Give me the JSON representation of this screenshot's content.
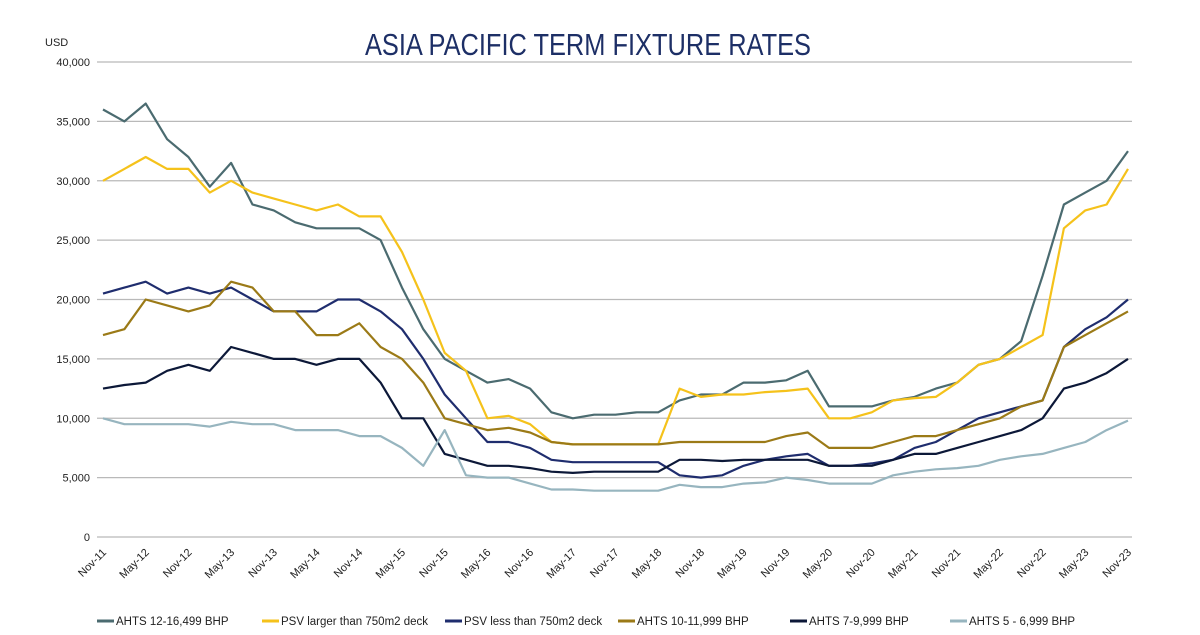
{
  "chart_data": {
    "type": "line",
    "title": "ASIA PACIFIC TERM FIXTURE RATES",
    "ylabel": "USD",
    "xlabel": "",
    "ylim": [
      0,
      40000
    ],
    "yticks": [
      0,
      5000,
      10000,
      15000,
      20000,
      25000,
      30000,
      35000,
      40000
    ],
    "ytick_labels": [
      "0",
      "5,000",
      "10,000",
      "15,000",
      "20,000",
      "25,000",
      "30,000",
      "35,000",
      "40,000"
    ],
    "grid": true,
    "legend_position": "bottom",
    "x_tick_labels": [
      "Nov-11",
      "May-12",
      "Nov-12",
      "May-13",
      "Nov-13",
      "May-14",
      "Nov-14",
      "May-15",
      "Nov-15",
      "May-16",
      "Nov-16",
      "May-17",
      "Nov-17",
      "May-18",
      "Nov-18",
      "May-19",
      "Nov-19",
      "May-20",
      "Nov-20",
      "May-21",
      "Nov-21",
      "May-22",
      "Nov-22",
      "May-23",
      "Nov-23"
    ],
    "x_resolution": "quarterly from Nov-11 to Nov-23",
    "series": [
      {
        "name": "AHTS 12-16,499 BHP",
        "color": "#4b6b70",
        "values": [
          36000,
          35000,
          36500,
          33500,
          32000,
          29500,
          31500,
          28000,
          27500,
          26500,
          26000,
          26000,
          26000,
          25000,
          21000,
          17500,
          15000,
          14000,
          13000,
          13300,
          12500,
          10500,
          10000,
          10300,
          10300,
          10500,
          10500,
          11500,
          12000,
          12000,
          13000,
          13000,
          13200,
          14000,
          11000,
          11000,
          11000,
          11500,
          11800,
          12500,
          13000,
          14500,
          15000,
          16500,
          22000,
          28000,
          29000,
          30000,
          32500
        ]
      },
      {
        "name": "PSV larger than 750m2 deck",
        "color": "#f5c21b",
        "values": [
          30000,
          31000,
          32000,
          31000,
          31000,
          29000,
          30000,
          29000,
          28500,
          28000,
          27500,
          28000,
          27000,
          27000,
          24000,
          20000,
          15500,
          14000,
          10000,
          10200,
          9500,
          8000,
          7800,
          7800,
          7800,
          7800,
          7800,
          12500,
          11800,
          12000,
          12000,
          12200,
          12300,
          12500,
          10000,
          10000,
          10500,
          11500,
          11700,
          11800,
          13000,
          14500,
          15000,
          16000,
          17000,
          26000,
          27500,
          28000,
          31000
        ]
      },
      {
        "name": "PSV less than 750m2 deck",
        "color": "#1f2d6e",
        "values": [
          20500,
          21000,
          21500,
          20500,
          21000,
          20500,
          21000,
          20000,
          19000,
          19000,
          19000,
          20000,
          20000,
          19000,
          17500,
          15000,
          12000,
          10000,
          8000,
          8000,
          7500,
          6500,
          6300,
          6300,
          6300,
          6300,
          6300,
          5200,
          5000,
          5200,
          6000,
          6500,
          6800,
          7000,
          6000,
          6000,
          6200,
          6500,
          7500,
          8000,
          9000,
          10000,
          10500,
          11000,
          11500,
          16000,
          17500,
          18500,
          20000
        ]
      },
      {
        "name": "AHTS 10-11,999 BHP",
        "color": "#9b7a17",
        "values": [
          17000,
          17500,
          20000,
          19500,
          19000,
          19500,
          21500,
          21000,
          19000,
          19000,
          17000,
          17000,
          18000,
          16000,
          15000,
          13000,
          10000,
          9500,
          9000,
          9200,
          8800,
          8000,
          7800,
          7800,
          7800,
          7800,
          7800,
          8000,
          8000,
          8000,
          8000,
          8000,
          8500,
          8800,
          7500,
          7500,
          7500,
          8000,
          8500,
          8500,
          9000,
          9500,
          10000,
          11000,
          11500,
          16000,
          17000,
          18000,
          19000
        ]
      },
      {
        "name": "AHTS 7-9,999 BHP",
        "color": "#0c1838",
        "values": [
          12500,
          12800,
          13000,
          14000,
          14500,
          14000,
          16000,
          15500,
          15000,
          15000,
          14500,
          15000,
          15000,
          13000,
          10000,
          10000,
          7000,
          6500,
          6000,
          6000,
          5800,
          5500,
          5400,
          5500,
          5500,
          5500,
          5500,
          6500,
          6500,
          6400,
          6500,
          6500,
          6500,
          6500,
          6000,
          6000,
          6000,
          6500,
          7000,
          7000,
          7500,
          8000,
          8500,
          9000,
          10000,
          12500,
          13000,
          13800,
          15000
        ]
      },
      {
        "name": "AHTS 5 - 6,999 BHP",
        "color": "#97b5bf",
        "values": [
          10000,
          9500,
          9500,
          9500,
          9500,
          9300,
          9700,
          9500,
          9500,
          9000,
          9000,
          9000,
          8500,
          8500,
          7500,
          6000,
          9000,
          5200,
          5000,
          5000,
          4500,
          4000,
          4000,
          3900,
          3900,
          3900,
          3900,
          4400,
          4200,
          4200,
          4500,
          4600,
          5000,
          4800,
          4500,
          4500,
          4500,
          5200,
          5500,
          5700,
          5800,
          6000,
          6500,
          6800,
          7000,
          7500,
          8000,
          9000,
          9800
        ]
      }
    ]
  }
}
